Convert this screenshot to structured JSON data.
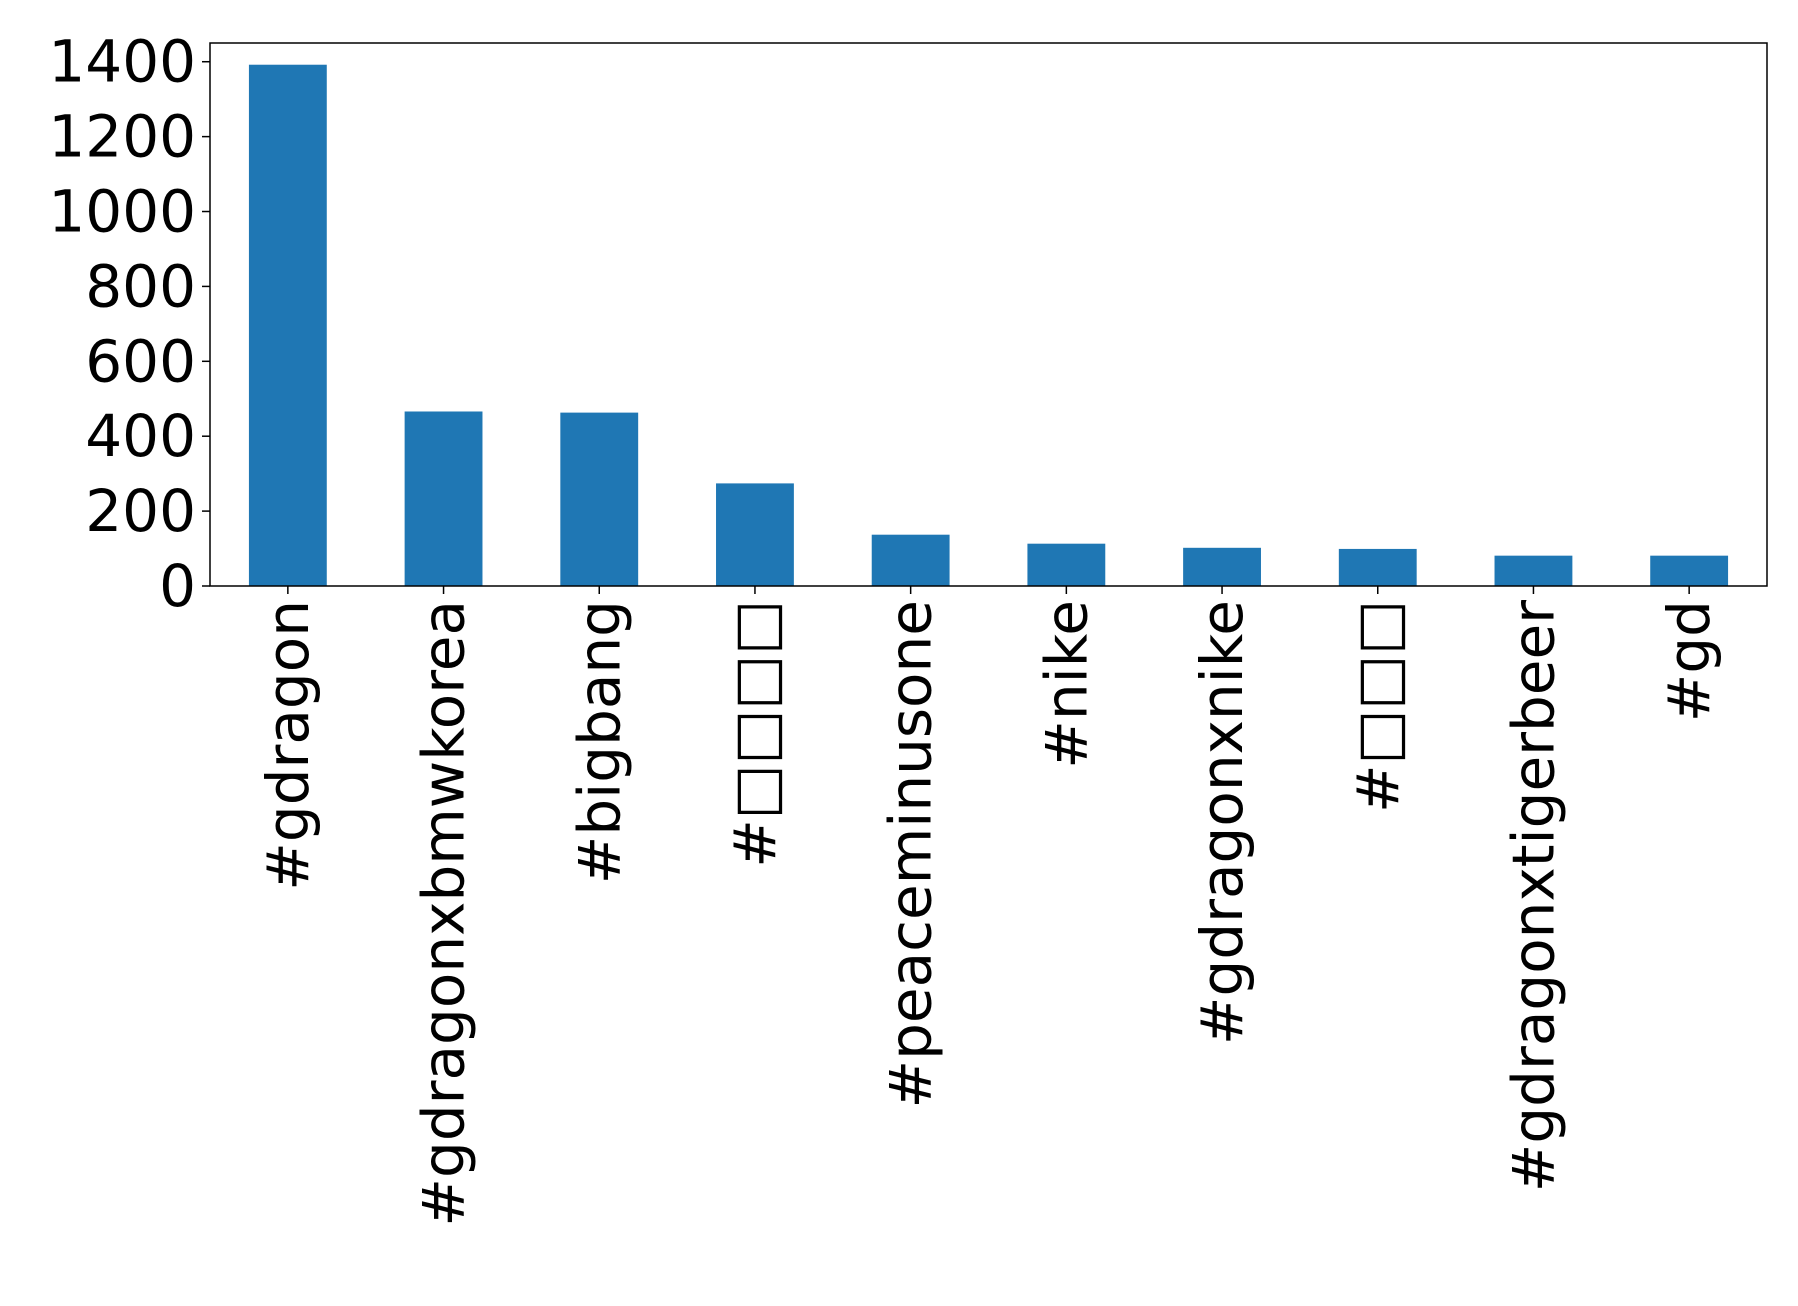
{
  "chart_data": {
    "type": "bar",
    "title": "",
    "xlabel": "",
    "ylabel": "",
    "categories": [
      "#gdragon",
      "#gdragonxbmwkorea",
      "#bigbang",
      "#□□□□",
      "#peaceminusone",
      "#nike",
      "#gdragonxnike",
      "#□□□",
      "#gdragonxtigerbeer",
      "#gd"
    ],
    "values": [
      1392,
      466,
      463,
      274,
      137,
      113,
      102,
      99,
      81,
      81
    ],
    "ylim": [
      0,
      1450
    ],
    "yticks": [
      0,
      200,
      400,
      600,
      800,
      1000,
      1200,
      1400
    ],
    "bar_color": "#1f77b4",
    "grid": false,
    "legend": "none"
  }
}
